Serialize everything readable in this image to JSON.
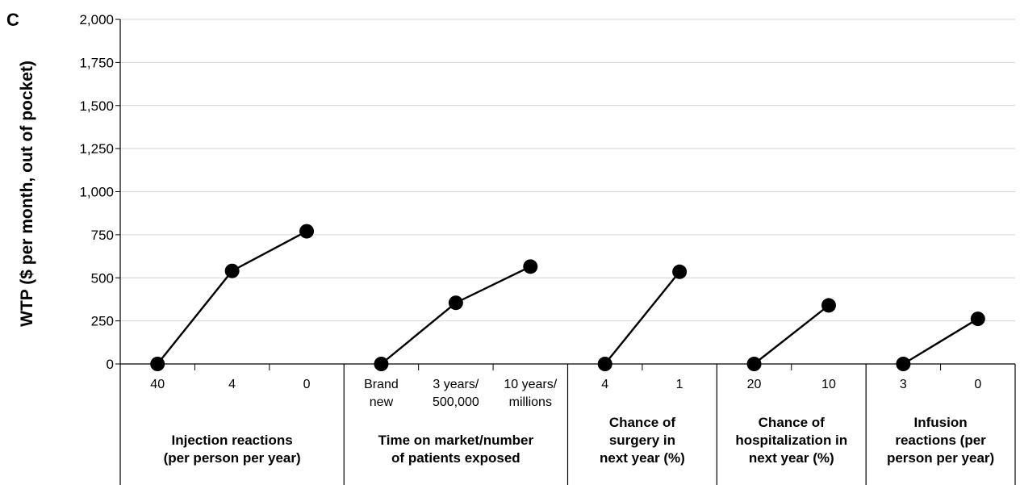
{
  "chart_data": {
    "type": "line",
    "panel_label": "C",
    "ylabel": "WTP ($ per month, out of pocket)",
    "ylim": [
      0,
      2000
    ],
    "yticks": [
      "0",
      "250",
      "500",
      "750",
      "1,000",
      "1,250",
      "1,500",
      "1,750",
      "2,000"
    ],
    "ytick_values": [
      0,
      250,
      500,
      750,
      1000,
      1250,
      1500,
      1750,
      2000
    ],
    "grid": true,
    "groups": [
      {
        "label_lines": [
          "Injection reactions",
          "(per person per year)"
        ],
        "categories": [
          [
            "40"
          ],
          [
            "4"
          ],
          [
            "0"
          ]
        ],
        "values": [
          0,
          540,
          770
        ]
      },
      {
        "label_lines": [
          "Time on market/number",
          "of patients exposed"
        ],
        "categories": [
          [
            "Brand",
            "new"
          ],
          [
            "3 years/",
            "500,000"
          ],
          [
            "10 years/",
            "millions"
          ]
        ],
        "values": [
          0,
          355,
          565
        ]
      },
      {
        "label_lines": [
          "Chance of",
          "surgery in",
          "next year (%)"
        ],
        "categories": [
          [
            "4"
          ],
          [
            "1"
          ]
        ],
        "values": [
          0,
          535
        ]
      },
      {
        "label_lines": [
          "Chance of",
          "hospitalization in",
          "next year (%)"
        ],
        "categories": [
          [
            "20"
          ],
          [
            "10"
          ]
        ],
        "values": [
          0,
          340
        ]
      },
      {
        "label_lines": [
          "Infusion",
          "reactions (per",
          "person per year)"
        ],
        "categories": [
          [
            "3"
          ],
          [
            "0"
          ]
        ],
        "values": [
          0,
          262
        ]
      }
    ]
  }
}
